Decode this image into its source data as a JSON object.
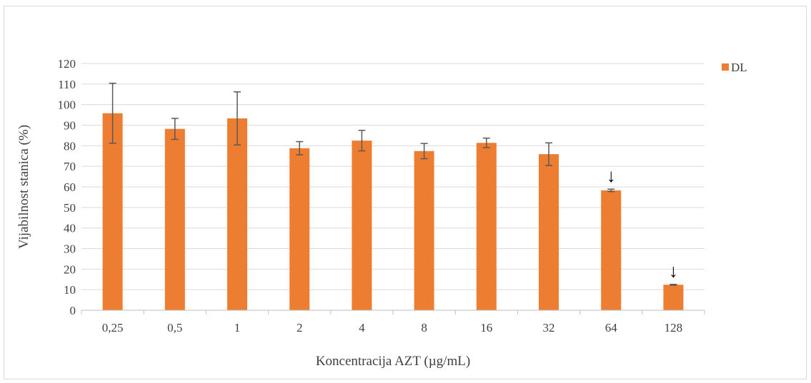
{
  "chart_data": {
    "type": "bar",
    "categories": [
      "0,25",
      "0,5",
      "1",
      "2",
      "4",
      "8",
      "16",
      "32",
      "64",
      "128"
    ],
    "series": [
      {
        "name": "DL",
        "color": "#ED7D31",
        "values": [
          95.8,
          88.2,
          93.3,
          78.8,
          82.5,
          77.4,
          81.4,
          75.9,
          58.3,
          12.4
        ],
        "error": [
          14.6,
          5.1,
          12.9,
          3.2,
          5.0,
          3.7,
          2.3,
          5.5,
          0.6,
          0.2
        ]
      }
    ],
    "markers": [
      {
        "category": "64",
        "symbol": "↓"
      },
      {
        "category": "128",
        "symbol": "↓"
      }
    ],
    "xlabel": "Koncentracija AZT (µg/mL)",
    "ylabel": "Vijabilnost stanica (%)",
    "ylim": [
      0,
      120
    ],
    "yticks": [
      0,
      10,
      20,
      30,
      40,
      50,
      60,
      70,
      80,
      90,
      100,
      110,
      120
    ],
    "grid": true,
    "legend": "right"
  }
}
